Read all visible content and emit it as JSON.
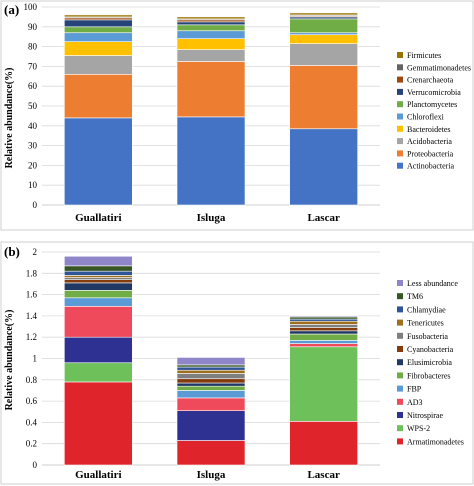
{
  "chart_data": [
    {
      "panel_label": "(a)",
      "type": "bar",
      "stacked": true,
      "ylabel": "Relative abundance(%)",
      "ylim": [
        0,
        100
      ],
      "yticks": [
        "0",
        "10",
        "20",
        "30",
        "40",
        "50",
        "60",
        "70",
        "80",
        "90",
        "100"
      ],
      "categories": [
        "Guallatiri",
        "Isluga",
        "Lascar"
      ],
      "legend_position": "right",
      "series": [
        {
          "name": "Actinobacteria",
          "color": "#4472c4",
          "values": [
            44,
            44.5,
            38.5
          ]
        },
        {
          "name": "Proteobacteria",
          "color": "#ed7d31",
          "values": [
            22,
            28,
            32
          ]
        },
        {
          "name": "Acidobacteria",
          "color": "#a5a5a5",
          "values": [
            9.5,
            6,
            11
          ]
        },
        {
          "name": "Bacteroidetes",
          "color": "#ffc000",
          "values": [
            7,
            5.5,
            4.5
          ]
        },
        {
          "name": "Chloroflexi",
          "color": "#5b9bd5",
          "values": [
            4.5,
            4,
            1
          ]
        },
        {
          "name": "Planctomycetes",
          "color": "#70ad47",
          "values": [
            3,
            3,
            7
          ]
        },
        {
          "name": "Verrucomicrobia",
          "color": "#264478",
          "values": [
            3.5,
            1.5,
            1
          ]
        },
        {
          "name": "Crenarchaeota",
          "color": "#9e480e",
          "values": [
            1,
            1,
            0.5
          ]
        },
        {
          "name": "Gemmatimonadetes",
          "color": "#636363",
          "values": [
            0.5,
            0.5,
            0.5
          ]
        },
        {
          "name": "Firmicutes",
          "color": "#997300",
          "values": [
            1,
            1,
            1
          ]
        }
      ]
    },
    {
      "panel_label": "(b)",
      "type": "bar",
      "stacked": true,
      "ylabel": "Relative abundance(%)",
      "ylim": [
        0,
        2
      ],
      "yticks": [
        "0",
        "0.2",
        "0.4",
        "0.6",
        "0.8",
        "1",
        "1.2",
        "1.4",
        "1.6",
        "1.8",
        "2"
      ],
      "categories": [
        "Guallatiri",
        "Isluga",
        "Lascar"
      ],
      "legend_position": "right",
      "series": [
        {
          "name": "Armatimonadetes",
          "color": "#e0242b",
          "values": [
            0.78,
            0.23,
            0.41
          ]
        },
        {
          "name": "WPS-2",
          "color": "#6ec05a",
          "values": [
            0.18,
            0.0,
            0.7
          ]
        },
        {
          "name": "Nitrospirae",
          "color": "#2e3192",
          "values": [
            0.24,
            0.28,
            0.0
          ]
        },
        {
          "name": "AD3",
          "color": "#ee4a5c",
          "values": [
            0.29,
            0.12,
            0.03
          ]
        },
        {
          "name": "FBP",
          "color": "#5b9bd5",
          "values": [
            0.08,
            0.07,
            0.03
          ]
        },
        {
          "name": "Fibrobacteres",
          "color": "#70ad47",
          "values": [
            0.07,
            0.04,
            0.06
          ]
        },
        {
          "name": "Elusimicrobia",
          "color": "#203864",
          "values": [
            0.07,
            0.03,
            0.03
          ]
        },
        {
          "name": "Cyanobacteria",
          "color": "#843c0c",
          "values": [
            0.03,
            0.04,
            0.03
          ]
        },
        {
          "name": "Fusobacteria",
          "color": "#7f7f7f",
          "values": [
            0.02,
            0.05,
            0.03
          ]
        },
        {
          "name": "Tenericutes",
          "color": "#9e6f1e",
          "values": [
            0.02,
            0.03,
            0.03
          ]
        },
        {
          "name": "Chlamydiae",
          "color": "#2f5597",
          "values": [
            0.04,
            0.03,
            0.02
          ]
        },
        {
          "name": "TM6",
          "color": "#375623",
          "values": [
            0.05,
            0.02,
            0.02
          ]
        },
        {
          "name": "Less abundance",
          "color": "#8e86c9",
          "values": [
            0.09,
            0.07,
            0.01
          ]
        }
      ]
    }
  ]
}
